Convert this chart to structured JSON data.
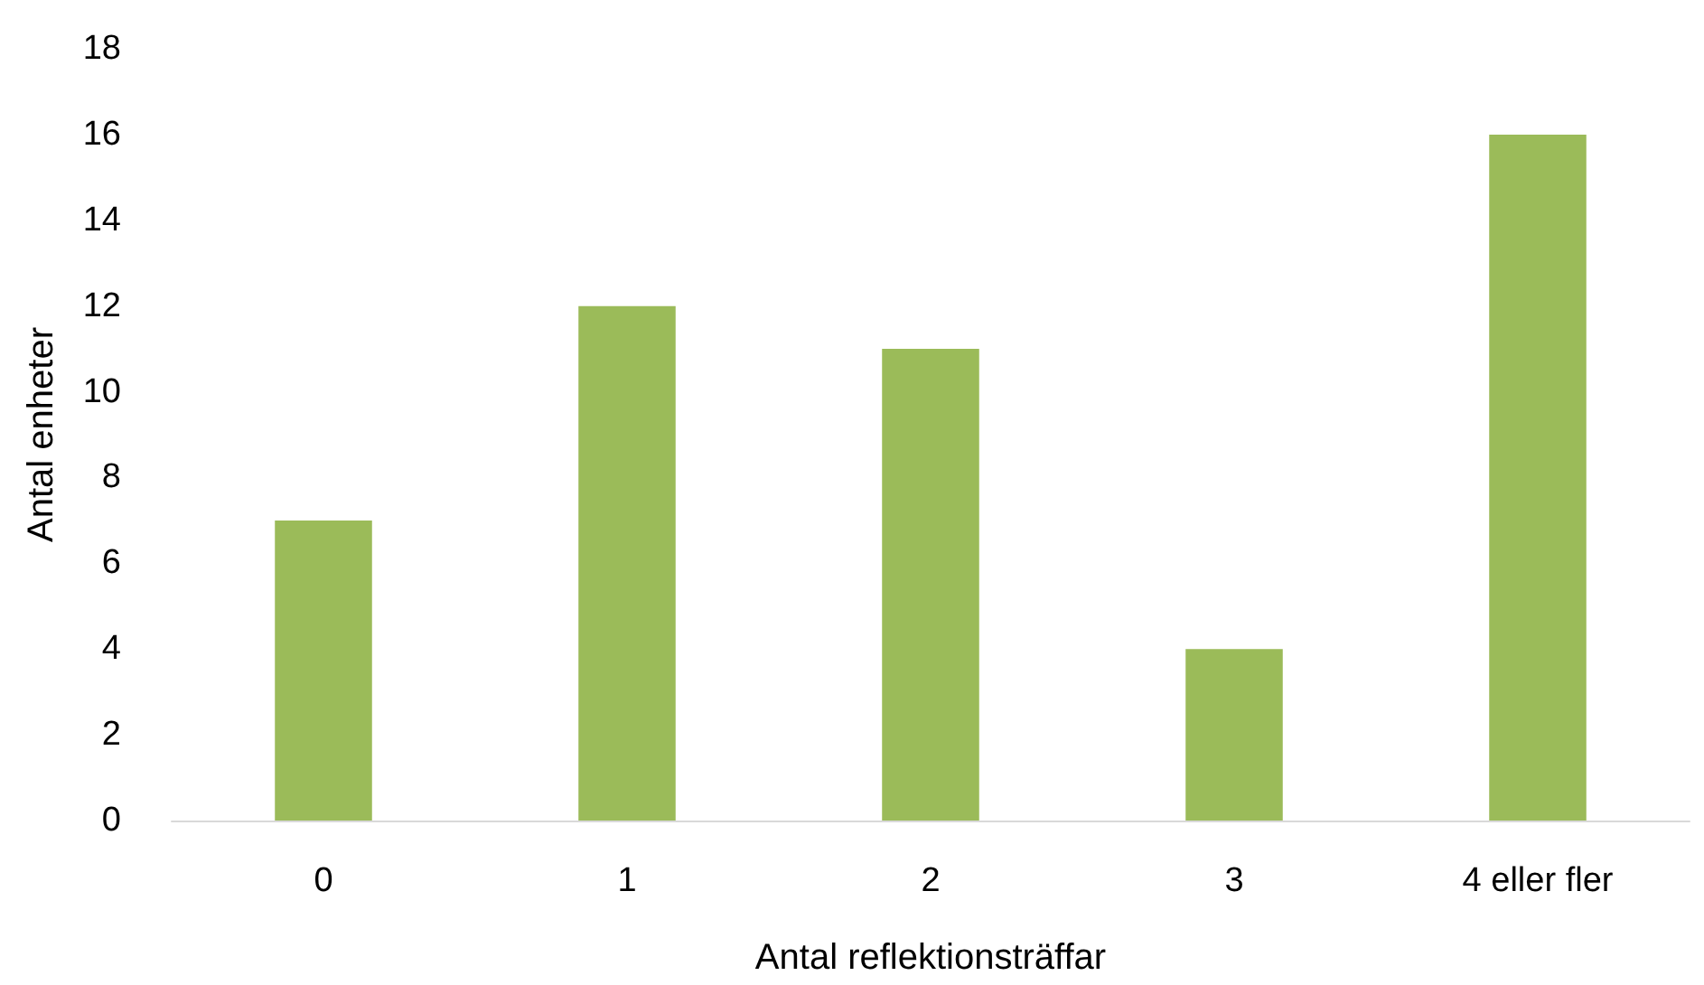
{
  "chart_data": {
    "type": "bar",
    "xlabel": "Antal reflektionsträffar",
    "ylabel": "Antal enheter",
    "categories": [
      "0",
      "1",
      "2",
      "3",
      "4 eller fler"
    ],
    "values": [
      7,
      12,
      11,
      4,
      16
    ],
    "color": "#9bbb59",
    "ylim": [
      0,
      18
    ],
    "yticks": [
      0,
      2,
      4,
      6,
      8,
      10,
      12,
      14,
      16,
      18
    ],
    "grid": false
  }
}
